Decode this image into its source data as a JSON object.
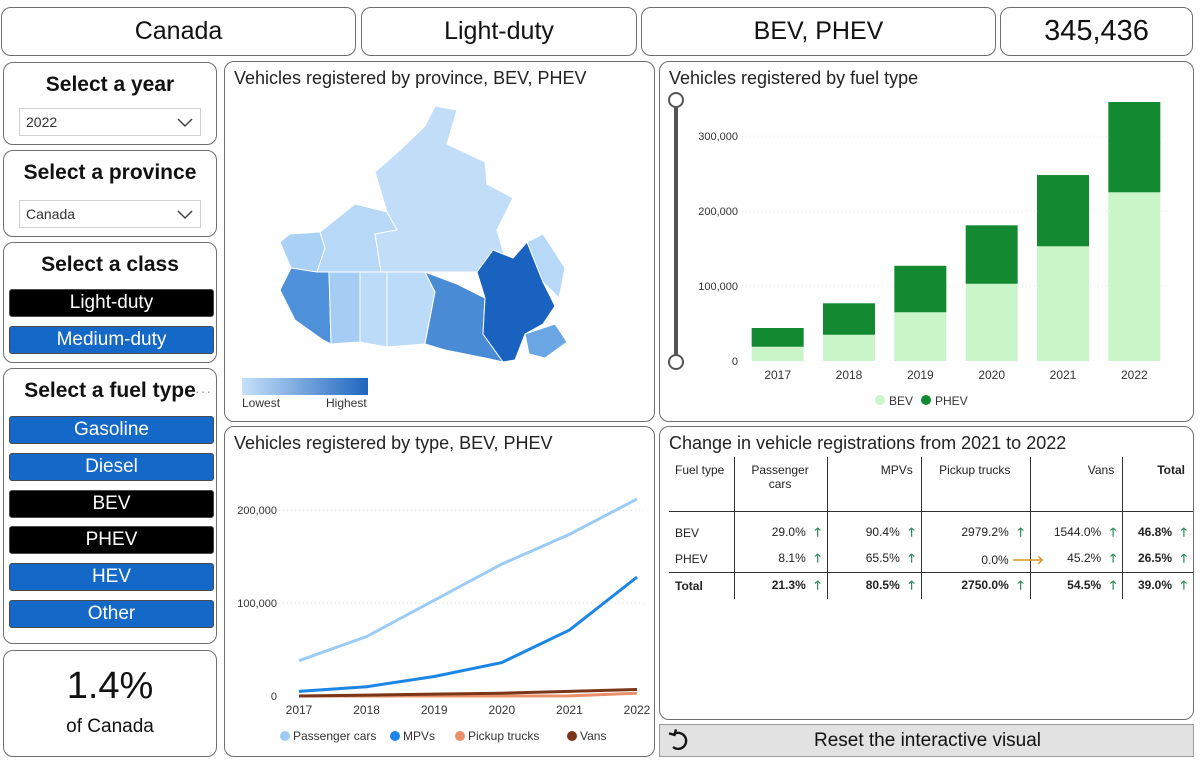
{
  "header": {
    "region": "Canada",
    "vehicle_class": "Light-duty",
    "fuel_selection": "BEV, PHEV",
    "total_count": "345,436"
  },
  "year_slicer": {
    "title": "Select a year",
    "value": "2022"
  },
  "province_slicer": {
    "title": "Select a province",
    "value": "Canada"
  },
  "class_slicer": {
    "title": "Select a class",
    "options": [
      {
        "label": "Light-duty",
        "selected": true
      },
      {
        "label": "Medium-duty",
        "selected": false
      }
    ]
  },
  "fuel_slicer": {
    "title": "Select a fuel type",
    "options": [
      {
        "label": "Gasoline",
        "selected": false
      },
      {
        "label": "Diesel",
        "selected": false
      },
      {
        "label": "BEV",
        "selected": true
      },
      {
        "label": "PHEV",
        "selected": true
      },
      {
        "label": "HEV",
        "selected": false
      },
      {
        "label": "Other",
        "selected": false
      }
    ]
  },
  "share_card": {
    "value": "1.4%",
    "label": "of Canada"
  },
  "map_panel": {
    "title": "Vehicles registered by province, BEV, PHEV",
    "legend_low": "Lowest",
    "legend_high": "Highest",
    "colors": {
      "low": "#c6e0f9",
      "high": "#1f66bf"
    }
  },
  "fuel_chart_panel": {
    "title": "Vehicles registered by fuel type"
  },
  "type_chart_panel": {
    "title": "Vehicles registered by type, BEV, PHEV"
  },
  "change_table": {
    "title": "Change in vehicle registrations from 2021 to 2022",
    "columns": [
      "Fuel type",
      "Passenger cars",
      "MPVs",
      "Pickup trucks",
      "Vans",
      "Total"
    ],
    "rows": [
      {
        "label": "BEV",
        "cells": [
          {
            "value": "29.0%",
            "trend": "up"
          },
          {
            "value": "90.4%",
            "trend": "up"
          },
          {
            "value": "2979.2%",
            "trend": "up"
          },
          {
            "value": "1544.0%",
            "trend": "up"
          },
          {
            "value": "46.8%",
            "trend": "up"
          }
        ]
      },
      {
        "label": "PHEV",
        "cells": [
          {
            "value": "8.1%",
            "trend": "up"
          },
          {
            "value": "65.5%",
            "trend": "up"
          },
          {
            "value": "0.0%",
            "trend": "flat"
          },
          {
            "value": "45.2%",
            "trend": "up"
          },
          {
            "value": "26.5%",
            "trend": "up"
          }
        ]
      },
      {
        "label": "Total",
        "cells": [
          {
            "value": "21.3%",
            "trend": "up"
          },
          {
            "value": "80.5%",
            "trend": "up"
          },
          {
            "value": "2750.0%",
            "trend": "up"
          },
          {
            "value": "54.5%",
            "trend": "up"
          },
          {
            "value": "39.0%",
            "trend": "up"
          }
        ]
      }
    ]
  },
  "reset_button": {
    "label": "Reset the interactive visual"
  },
  "chart_data": [
    {
      "type": "bar",
      "stacked": true,
      "title": "Vehicles registered by fuel type",
      "categories": [
        "2017",
        "2018",
        "2019",
        "2020",
        "2021",
        "2022"
      ],
      "series": [
        {
          "name": "BEV",
          "color": "#c9f5c9",
          "values": [
            19000,
            35000,
            65000,
            103000,
            153000,
            225000
          ]
        },
        {
          "name": "PHEV",
          "color": "#138a32",
          "values": [
            25000,
            42000,
            62000,
            78000,
            95000,
            120436
          ]
        }
      ],
      "ylim": [
        0,
        345436
      ],
      "yticks": [
        0,
        100000,
        200000,
        300000
      ],
      "ytick_labels": [
        "0",
        "100,000",
        "200,000",
        "300,000"
      ],
      "legend_position": "bottom"
    },
    {
      "type": "line",
      "title": "Vehicles registered by type, BEV, PHEV",
      "x": [
        "2017",
        "2018",
        "2019",
        "2020",
        "2021",
        "2022"
      ],
      "series": [
        {
          "name": "Passenger cars",
          "color": "#9cccf5",
          "values": [
            38000,
            64000,
            103000,
            142000,
            174000,
            212000
          ]
        },
        {
          "name": "MPVs",
          "color": "#1c86e6",
          "values": [
            5000,
            10000,
            21000,
            36000,
            71000,
            128000
          ]
        },
        {
          "name": "Pickup trucks",
          "color": "#e9906a",
          "values": [
            0,
            0,
            0,
            0,
            100,
            3000
          ]
        },
        {
          "name": "Vans",
          "color": "#7a3618",
          "values": [
            0,
            1000,
            2000,
            3000,
            5000,
            7000
          ]
        }
      ],
      "ylim": [
        0,
        225000
      ],
      "yticks": [
        0,
        100000,
        200000
      ],
      "ytick_labels": [
        "0",
        "100,000",
        "200,000"
      ],
      "legend_position": "bottom"
    }
  ]
}
